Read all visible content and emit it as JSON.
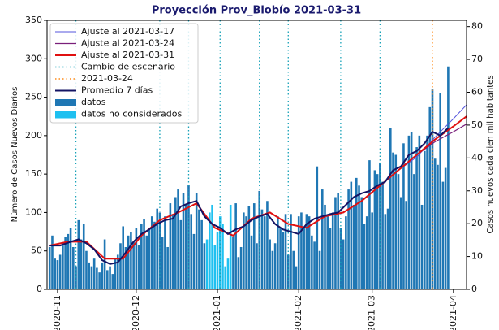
{
  "chart_data": {
    "type": "bar_line",
    "title": "Proyección Prov_Biobío 2021-03-31",
    "y_label": "Número de Casos Nuevos Diarios",
    "y2_label": "Casos nuevos cada cien mil habitantes",
    "xlim": [
      "2020-10-28",
      "2021-04-06"
    ],
    "xticks": [
      {
        "value": "2020-11-01",
        "label": "2020-11"
      },
      {
        "value": "2020-12-01",
        "label": "2020-12"
      },
      {
        "value": "2021-01-01",
        "label": "2021-01"
      },
      {
        "value": "2021-02-01",
        "label": "2021-02"
      },
      {
        "value": "2021-03-01",
        "label": "2021-03"
      },
      {
        "value": "2021-04-01",
        "label": "2021-04"
      }
    ],
    "ylim": [
      0,
      350
    ],
    "yticks": [
      0,
      50,
      100,
      150,
      200,
      250,
      300,
      350
    ],
    "y2lim": [
      0,
      81.9
    ],
    "y2ticks": [
      0,
      10,
      20,
      30,
      40,
      50,
      60,
      70,
      80
    ],
    "legend": "upper left",
    "vlines": [
      {
        "name": "Cambio de escenario",
        "color": "#17a2b8",
        "dates": [
          "2020-11-08",
          "2020-12-10",
          "2020-12-21",
          "2021-01-02",
          "2021-01-17",
          "2021-01-28",
          "2021-02-17",
          "2021-03-04"
        ]
      },
      {
        "name": "2021-03-24",
        "color": "#ff8c1a",
        "dates": [
          "2021-03-24"
        ]
      }
    ],
    "series": [
      {
        "name": "Ajuste al 2021-03-17",
        "type": "line",
        "color": "#5555dd",
        "width": 1,
        "x": [
          "2021-02-04",
          "2021-02-11",
          "2021-02-18",
          "2021-02-25",
          "2021-03-04",
          "2021-03-11",
          "2021-03-18",
          "2021-03-25",
          "2021-04-01",
          "2021-04-06"
        ],
        "values": [
          80,
          95,
          100,
          115,
          135,
          155,
          172,
          198,
          222,
          240
        ]
      },
      {
        "name": "Ajuste al 2021-03-24",
        "type": "line",
        "color": "#7a1f7a",
        "width": 1.2,
        "x": [
          "2021-02-04",
          "2021-02-11",
          "2021-02-18",
          "2021-02-25",
          "2021-03-04",
          "2021-03-11",
          "2021-03-18",
          "2021-03-25",
          "2021-04-01",
          "2021-04-06"
        ],
        "values": [
          80,
          95,
          100,
          115,
          135,
          155,
          175,
          192,
          205,
          215
        ]
      },
      {
        "name": "Ajuste al 2021-03-31",
        "type": "line",
        "color": "#e01010",
        "width": 2,
        "x": [
          "2020-10-29",
          "2020-11-05",
          "2020-11-12",
          "2020-11-19",
          "2020-11-26",
          "2020-12-03",
          "2020-12-10",
          "2020-12-17",
          "2020-12-24",
          "2020-12-31",
          "2021-01-07",
          "2021-01-14",
          "2021-01-21",
          "2021-01-28",
          "2021-02-04",
          "2021-02-11",
          "2021-02-18",
          "2021-02-25",
          "2021-03-04",
          "2021-03-11",
          "2021-03-18",
          "2021-03-25",
          "2021-04-01",
          "2021-04-06"
        ],
        "values": [
          57,
          62,
          62,
          40,
          40,
          70,
          90,
          100,
          112,
          80,
          70,
          92,
          100,
          85,
          80,
          95,
          100,
          115,
          135,
          155,
          175,
          195,
          212,
          225
        ]
      },
      {
        "name": "Promedio 7 días",
        "type": "line",
        "color": "#141464",
        "width": 2,
        "x": [
          "2020-10-29",
          "2020-11-02",
          "2020-11-06",
          "2020-11-09",
          "2020-11-12",
          "2020-11-15",
          "2020-11-18",
          "2020-11-21",
          "2020-11-24",
          "2020-11-27",
          "2020-11-30",
          "2020-12-03",
          "2020-12-06",
          "2020-12-09",
          "2020-12-12",
          "2020-12-15",
          "2020-12-18",
          "2020-12-21",
          "2020-12-24",
          "2020-12-27",
          "2020-12-30",
          "2021-01-02",
          "2021-01-05",
          "2021-01-08",
          "2021-01-11",
          "2021-01-14",
          "2021-01-17",
          "2021-01-20",
          "2021-01-23",
          "2021-01-26",
          "2021-01-29",
          "2021-02-01",
          "2021-02-04",
          "2021-02-07",
          "2021-02-10",
          "2021-02-13",
          "2021-02-16",
          "2021-02-19",
          "2021-02-22",
          "2021-02-25",
          "2021-02-28",
          "2021-03-03",
          "2021-03-06",
          "2021-03-09",
          "2021-03-12",
          "2021-03-15",
          "2021-03-18",
          "2021-03-21",
          "2021-03-24",
          "2021-03-27",
          "2021-03-30"
        ],
        "values": [
          57,
          57,
          62,
          65,
          60,
          52,
          38,
          33,
          35,
          48,
          62,
          72,
          78,
          85,
          90,
          92,
          108,
          112,
          115,
          95,
          85,
          80,
          72,
          78,
          82,
          90,
          95,
          98,
          85,
          78,
          75,
          72,
          85,
          92,
          95,
          98,
          100,
          110,
          120,
          125,
          128,
          135,
          140,
          155,
          160,
          175,
          180,
          190,
          205,
          200,
          210
        ]
      },
      {
        "name": "datos",
        "type": "bar",
        "color": "#1f77b4",
        "x": [
          "2020-10-29",
          "2020-10-30",
          "2020-10-31",
          "2020-11-01",
          "2020-11-02",
          "2020-11-03",
          "2020-11-04",
          "2020-11-05",
          "2020-11-06",
          "2020-11-07",
          "2020-11-08",
          "2020-11-09",
          "2020-11-10",
          "2020-11-11",
          "2020-11-12",
          "2020-11-13",
          "2020-11-14",
          "2020-11-15",
          "2020-11-16",
          "2020-11-17",
          "2020-11-18",
          "2020-11-19",
          "2020-11-20",
          "2020-11-21",
          "2020-11-22",
          "2020-11-23",
          "2020-11-24",
          "2020-11-25",
          "2020-11-26",
          "2020-11-27",
          "2020-11-28",
          "2020-11-29",
          "2020-11-30",
          "2020-12-01",
          "2020-12-02",
          "2020-12-03",
          "2020-12-04",
          "2020-12-05",
          "2020-12-06",
          "2020-12-07",
          "2020-12-08",
          "2020-12-09",
          "2020-12-10",
          "2020-12-11",
          "2020-12-12",
          "2020-12-13",
          "2020-12-14",
          "2020-12-15",
          "2020-12-16",
          "2020-12-17",
          "2020-12-18",
          "2020-12-19",
          "2020-12-20",
          "2020-12-21",
          "2020-12-22",
          "2020-12-23",
          "2020-12-24",
          "2020-12-25",
          "2020-12-26",
          "2020-12-27",
          "2021-01-07",
          "2021-01-08",
          "2021-01-09",
          "2021-01-10",
          "2021-01-11",
          "2021-01-12",
          "2021-01-13",
          "2021-01-14",
          "2021-01-15",
          "2021-01-16",
          "2021-01-17",
          "2021-01-18",
          "2021-01-19",
          "2021-01-20",
          "2021-01-21",
          "2021-01-22",
          "2021-01-23",
          "2021-01-24",
          "2021-01-25",
          "2021-01-26",
          "2021-01-27",
          "2021-01-28",
          "2021-01-29",
          "2021-01-30",
          "2021-01-31",
          "2021-02-01",
          "2021-02-02",
          "2021-02-03",
          "2021-02-04",
          "2021-02-05",
          "2021-02-06",
          "2021-02-07",
          "2021-02-08",
          "2021-02-09",
          "2021-02-10",
          "2021-02-11",
          "2021-02-12",
          "2021-02-13",
          "2021-02-14",
          "2021-02-15",
          "2021-02-16",
          "2021-02-17",
          "2021-02-18",
          "2021-02-19",
          "2021-02-20",
          "2021-02-21",
          "2021-02-22",
          "2021-02-23",
          "2021-02-24",
          "2021-02-25",
          "2021-02-26",
          "2021-02-27",
          "2021-02-28",
          "2021-03-01",
          "2021-03-02",
          "2021-03-03",
          "2021-03-04",
          "2021-03-05",
          "2021-03-06",
          "2021-03-07",
          "2021-03-08",
          "2021-03-09",
          "2021-03-10",
          "2021-03-11",
          "2021-03-12",
          "2021-03-13",
          "2021-03-14",
          "2021-03-15",
          "2021-03-16",
          "2021-03-17",
          "2021-03-18",
          "2021-03-19",
          "2021-03-20",
          "2021-03-21",
          "2021-03-22",
          "2021-03-23",
          "2021-03-24",
          "2021-03-25",
          "2021-03-26",
          "2021-03-27",
          "2021-03-28",
          "2021-03-29",
          "2021-03-30"
        ],
        "values": [
          55,
          70,
          40,
          38,
          45,
          60,
          68,
          72,
          80,
          55,
          30,
          90,
          65,
          85,
          50,
          35,
          30,
          40,
          28,
          22,
          35,
          65,
          25,
          30,
          20,
          40,
          45,
          60,
          82,
          55,
          70,
          75,
          62,
          80,
          58,
          85,
          92,
          70,
          78,
          95,
          88,
          105,
          100,
          68,
          95,
          55,
          112,
          98,
          120,
          130,
          90,
          125,
          110,
          136,
          98,
          72,
          125,
          104,
          90,
          60,
          68,
          112,
          42,
          55,
          100,
          95,
          108,
          70,
          112,
          60,
          128,
          104,
          95,
          115,
          65,
          50,
          60,
          95,
          80,
          75,
          98,
          45,
          98,
          50,
          30,
          95,
          100,
          80,
          98,
          95,
          70,
          62,
          160,
          50,
          130,
          110,
          95,
          80,
          100,
          120,
          125,
          80,
          65,
          95,
          130,
          140,
          110,
          145,
          135,
          120,
          85,
          95,
          168,
          100,
          155,
          150,
          165,
          140,
          98,
          105,
          210,
          178,
          175,
          150,
          120,
          190,
          115,
          200,
          205,
          150,
          185,
          200,
          110,
          180,
          200,
          237,
          260,
          170,
          162,
          255,
          140,
          158,
          290
        ]
      },
      {
        "name": "datos no considerados",
        "type": "bar",
        "color": "#1ec0f0",
        "x": [
          "2020-12-28",
          "2020-12-29",
          "2020-12-30",
          "2020-12-31",
          "2021-01-01",
          "2021-01-02",
          "2021-01-03",
          "2021-01-04",
          "2021-01-05",
          "2021-01-06"
        ],
        "values": [
          65,
          100,
          110,
          58,
          75,
          95,
          85,
          30,
          40,
          110
        ]
      }
    ]
  }
}
